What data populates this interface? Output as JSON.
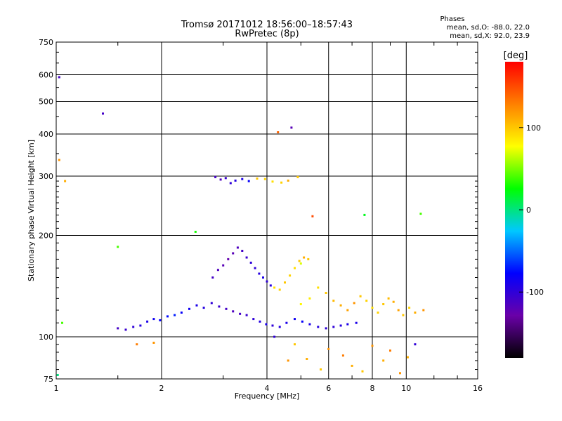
{
  "chart_data": {
    "type": "scatter",
    "title": "Tromsø 20171012 18:56:00–18:57:43",
    "subtitle": "RwPretec (8p)",
    "xlabel": "Frequency [MHz]",
    "ylabel": "Stationary phase Virtual Height [km]",
    "x_scale": "log2",
    "y_scale": "log",
    "xlim": [
      1,
      16
    ],
    "ylim": [
      75,
      750
    ],
    "x_ticks": [
      1,
      2,
      4,
      6,
      8,
      10,
      16
    ],
    "y_ticks": [
      75,
      100,
      200,
      300,
      400,
      500,
      600,
      750
    ],
    "grid": true,
    "phases_header": "Phases",
    "phases_lines": [
      "mean, sd,O:  -88.0, 22.0",
      "mean, sd,X:   92.0, 23.9"
    ],
    "colorbar": {
      "label": "[deg]",
      "range": [
        -180,
        180
      ],
      "ticks": [
        100,
        0,
        -100
      ],
      "colors": [
        "#000000",
        "#6a00a8",
        "#0000ff",
        "#00c8ff",
        "#00ff00",
        "#ffff00",
        "#ff8000",
        "#ff0000"
      ]
    },
    "series": [
      {
        "x": [
          1.02,
          1.06,
          1.36,
          1.04,
          1.02,
          1.01,
          1.5,
          1.7,
          1.9,
          2.5,
          4.3,
          4.7,
          5.4,
          7.6,
          11.0,
          5.0,
          4.6
        ],
        "y": [
          590,
          290,
          460,
          110,
          335,
          77,
          185,
          95,
          96,
          205,
          405,
          418,
          228,
          230,
          232,
          165,
          85
        ],
        "phase": [
          -110,
          110,
          -110,
          40,
          120,
          0,
          40,
          130,
          120,
          30,
          140,
          -120,
          150,
          20,
          40,
          70,
          120
        ]
      },
      {
        "x": [
          2.85,
          2.95,
          3.05,
          3.15,
          3.25,
          3.4,
          3.55,
          3.75,
          3.95,
          4.15,
          4.4,
          4.6,
          4.9
        ],
        "y": [
          298,
          293,
          296,
          286,
          291,
          294,
          290,
          295,
          294,
          289,
          287,
          291,
          298
        ],
        "phase": [
          -110,
          -115,
          -105,
          -100,
          -95,
          -90,
          -80,
          100,
          95,
          90,
          95,
          110,
          100
        ]
      },
      {
        "x": [
          1.5,
          1.58,
          1.66,
          1.74,
          1.82,
          1.9,
          1.98,
          2.08,
          2.18,
          2.28,
          2.4,
          2.52,
          2.64,
          2.78,
          2.92,
          3.06,
          3.2,
          3.35,
          3.5,
          3.66,
          3.82,
          3.98,
          4.15,
          4.35,
          4.55,
          4.8,
          5.05,
          5.3,
          5.6,
          5.9,
          6.2,
          6.5,
          6.8,
          7.2
        ],
        "y": [
          106,
          105,
          107,
          108,
          111,
          113,
          112,
          115,
          116,
          118,
          121,
          124,
          122,
          126,
          123,
          121,
          119,
          117,
          116,
          113,
          111,
          109,
          108,
          107,
          110,
          113,
          111,
          109,
          107,
          106,
          107,
          108,
          109,
          110
        ],
        "phase": [
          -110,
          -105,
          -100,
          -95,
          -90,
          -85,
          -80,
          -75,
          -70,
          -80,
          -85,
          -90,
          -95,
          -100,
          -105,
          -110,
          -115,
          -110,
          -105,
          -100,
          -95,
          -90,
          -100,
          -95,
          -90,
          -85,
          -80,
          -90,
          -95,
          -100,
          -100,
          -95,
          -90,
          -90
        ]
      },
      {
        "x": [
          2.8,
          2.9,
          3.0,
          3.1,
          3.2,
          3.3,
          3.4,
          3.5,
          3.6,
          3.7,
          3.8,
          3.9,
          4.0,
          4.1,
          4.2,
          4.35,
          4.5,
          4.65,
          4.8,
          4.95,
          5.1,
          5.25
        ],
        "y": [
          150,
          158,
          163,
          170,
          177,
          184,
          180,
          172,
          166,
          160,
          154,
          150,
          146,
          142,
          140,
          138,
          145,
          152,
          160,
          168,
          172,
          170
        ],
        "phase": [
          -110,
          -115,
          -120,
          -125,
          -120,
          -115,
          -110,
          -105,
          -100,
          -100,
          -95,
          -90,
          -100,
          -95,
          90,
          95,
          100,
          95,
          90,
          100,
          110,
          100
        ]
      },
      {
        "x": [
          5.0,
          5.3,
          5.6,
          5.9,
          6.2,
          6.5,
          6.8,
          7.1,
          7.4,
          7.7,
          8.0,
          8.3,
          8.6,
          8.9,
          9.2,
          9.5,
          9.8,
          10.2,
          10.6,
          11.2
        ],
        "y": [
          125,
          130,
          140,
          135,
          128,
          124,
          120,
          126,
          132,
          128,
          122,
          118,
          125,
          130,
          127,
          120,
          116,
          122,
          118,
          120
        ],
        "phase": [
          80,
          85,
          90,
          100,
          105,
          110,
          115,
          120,
          100,
          95,
          90,
          95,
          100,
          105,
          110,
          115,
          100,
          95,
          110,
          120
        ]
      },
      {
        "x": [
          4.2,
          4.8,
          5.2,
          5.7,
          6.0,
          6.6,
          7.0,
          7.5,
          8.0,
          8.6,
          9.0,
          9.6,
          10.1,
          10.6
        ],
        "y": [
          100,
          95,
          86,
          80,
          92,
          88,
          82,
          79,
          94,
          85,
          91,
          78,
          87,
          95
        ],
        "phase": [
          -100,
          100,
          110,
          100,
          120,
          130,
          110,
          100,
          120,
          110,
          130,
          120,
          110,
          -100
        ]
      }
    ]
  }
}
